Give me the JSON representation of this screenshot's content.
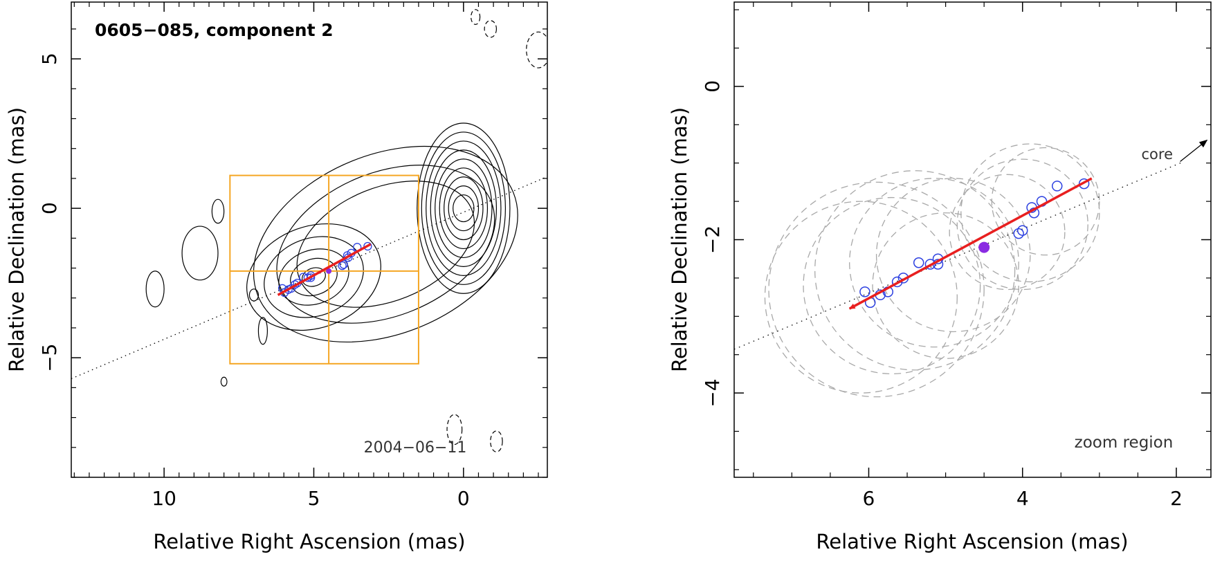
{
  "chart_data": [
    {
      "type": "contour",
      "title": "0605−085, component 2",
      "date_label": "2004−06−11",
      "xlabel": "Relative Right Ascension (mas)",
      "ylabel": "Relative Declination (mas)",
      "xlim": [
        13.1,
        -2.8
      ],
      "ylim": [
        -9.0,
        6.9
      ],
      "x_ticks": [
        10,
        5,
        0
      ],
      "x_tick_labels": [
        "10",
        "5",
        "0"
      ],
      "y_ticks": [
        5,
        0,
        -5
      ],
      "y_tick_labels": [
        "5",
        "0",
        "−5"
      ],
      "core": {
        "x": 0.0,
        "y": 0.0
      },
      "contour_radii_x": [
        0.35,
        0.5,
        0.65,
        0.8,
        0.95,
        1.1,
        1.25,
        1.4,
        1.55
      ],
      "contour_radii_y": [
        0.45,
        0.75,
        1.05,
        1.35,
        1.65,
        1.95,
        2.25,
        2.55,
        2.85
      ],
      "inner_lobe": {
        "x": 5.0,
        "y": -2.3,
        "rx": [
          0.4,
          0.8,
          1.2,
          1.7,
          2.3
        ],
        "ry": [
          0.3,
          0.6,
          0.9,
          1.3,
          1.7
        ]
      },
      "zoom_box": {
        "x": [
          7.8,
          1.5
        ],
        "y": [
          1.1,
          -5.2
        ],
        "cross_x": 4.5,
        "cross_y": -2.1
      },
      "jet_axis": {
        "x": [
          13.1,
          -2.8
        ],
        "y": [
          -5.7,
          1.06
        ]
      },
      "motion_vector": {
        "x": [
          6.2,
          3.1
        ],
        "y": [
          -2.9,
          -1.2
        ]
      },
      "component_positions": {
        "x": [
          6.05,
          5.98,
          5.85,
          5.75,
          5.63,
          5.55,
          5.35,
          5.2,
          5.1,
          5.1,
          4.05,
          4.0,
          3.88,
          3.85,
          3.75,
          3.55,
          3.2
        ],
        "y": [
          -2.68,
          -2.82,
          -2.72,
          -2.68,
          -2.55,
          -2.5,
          -2.3,
          -2.32,
          -2.25,
          -2.32,
          -1.92,
          -1.88,
          -1.58,
          -1.65,
          -1.5,
          -1.3,
          -1.27
        ]
      },
      "mean_position": {
        "x": 4.5,
        "y": -2.1
      },
      "negative_contours": [
        {
          "x": 0.3,
          "y": -7.4,
          "rx": 0.25,
          "ry": 0.5
        },
        {
          "x": -1.1,
          "y": -7.8,
          "rx": 0.2,
          "ry": 0.35
        },
        {
          "x": -0.4,
          "y": 6.4,
          "rx": 0.15,
          "ry": 0.25
        },
        {
          "x": -0.9,
          "y": 6.0,
          "rx": 0.2,
          "ry": 0.28
        },
        {
          "x": -2.5,
          "y": 5.3,
          "rx": 0.4,
          "ry": 0.6
        }
      ]
    },
    {
      "type": "scatter",
      "title": "zoom region",
      "core_label": "core",
      "xlabel": "Relative Right Ascension (mas)",
      "ylabel": "Relative Declination (mas)",
      "xlim": [
        7.75,
        1.55
      ],
      "ylim": [
        -5.1,
        1.1
      ],
      "x_ticks": [
        6,
        4,
        2
      ],
      "x_tick_labels": [
        "6",
        "4",
        "2"
      ],
      "y_ticks": [
        0,
        -2,
        -4
      ],
      "y_tick_labels": [
        "0",
        "−2",
        "−4"
      ],
      "jet_axis": {
        "x": [
          7.75,
          1.9
        ],
        "y": [
          -3.43,
          -0.98
        ]
      },
      "core_arrow": {
        "x": [
          1.95,
          1.6
        ],
        "y": [
          -0.98,
          -0.7
        ]
      },
      "motion_vector": {
        "x": [
          3.1,
          6.25
        ],
        "y": [
          -1.2,
          -2.9
        ]
      },
      "component_positions": {
        "x": [
          6.05,
          5.98,
          5.85,
          5.75,
          5.63,
          5.55,
          5.35,
          5.2,
          5.1,
          5.1,
          4.05,
          4.0,
          3.88,
          3.85,
          3.75,
          3.55,
          3.2
        ],
        "y": [
          -2.68,
          -2.82,
          -2.72,
          -2.68,
          -2.55,
          -2.5,
          -2.3,
          -2.32,
          -2.25,
          -2.32,
          -1.92,
          -1.88,
          -1.58,
          -1.65,
          -1.5,
          -1.3,
          -1.27
        ]
      },
      "mean_position": {
        "x": 4.5,
        "y": -2.1
      },
      "component_sizes": {
        "x": [
          6.1,
          5.9,
          5.7,
          5.4,
          5.15,
          5.0,
          4.9,
          4.2,
          4.0,
          3.9,
          3.7
        ],
        "y": [
          -2.75,
          -2.65,
          -2.6,
          -2.4,
          -2.3,
          -2.6,
          -2.2,
          -1.9,
          -1.8,
          -1.65,
          -1.5
        ],
        "r": [
          1.25,
          1.4,
          1.15,
          1.3,
          1.1,
          0.95,
          1.0,
          0.75,
          0.85,
          0.9,
          0.7
        ]
      }
    }
  ],
  "colors": {
    "axis": "#000000",
    "contour": "#000000",
    "zoom_box": "#f5a623",
    "vector": "#e81f1f",
    "components": "#2b3fe0",
    "mean_position": "#8a2be2",
    "size_circles": "#a8a8a8",
    "annotation": "#333333"
  }
}
